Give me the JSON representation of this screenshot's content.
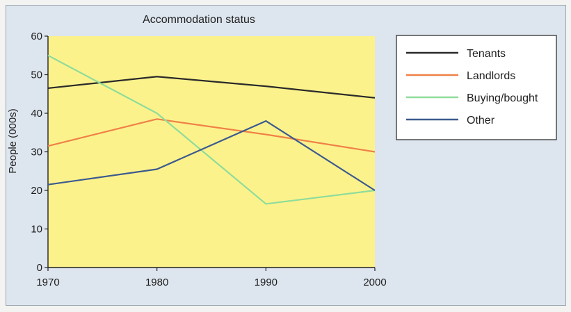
{
  "chart_data": {
    "type": "line",
    "title": "Accommodation status",
    "xlabel": "",
    "ylabel": "People (000s)",
    "x": [
      1970,
      1980,
      1990,
      2000
    ],
    "xlim": [
      1970,
      2000
    ],
    "ylim": [
      0,
      60
    ],
    "yticks": [
      0,
      10,
      20,
      30,
      40,
      50,
      60
    ],
    "xticks": [
      "1970",
      "1980",
      "1990",
      "2000"
    ],
    "grid": false,
    "legend_position": "right",
    "plot_background": "#fcf28c",
    "series": [
      {
        "name": "Tenants",
        "values": [
          46.5,
          49.5,
          47,
          44
        ],
        "color": "#2a2a2a"
      },
      {
        "name": "Landlords",
        "values": [
          31.5,
          38.5,
          34.5,
          30
        ],
        "color": "#ef8147"
      },
      {
        "name": "Buying/bought",
        "values": [
          55,
          40,
          16.5,
          20
        ],
        "color": "#8fdc9a"
      },
      {
        "name": "Other",
        "values": [
          21.5,
          25.5,
          38,
          20
        ],
        "color": "#3c5a8e"
      }
    ]
  }
}
